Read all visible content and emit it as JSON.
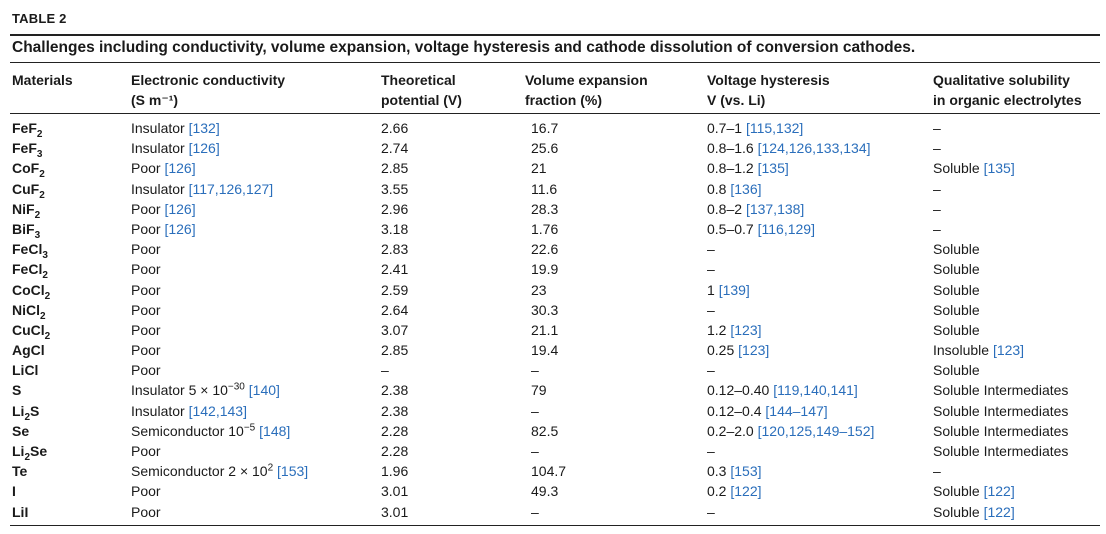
{
  "table": {
    "label": "TABLE 2",
    "caption": "Challenges including conductivity, volume expansion, voltage hysteresis and cathode dissolution of conversion cathodes.",
    "headers": {
      "materials": [
        "Materials"
      ],
      "conductivity": [
        "Electronic conductivity",
        "(S m⁻¹)"
      ],
      "potential": [
        "Theoretical",
        "potential (V)"
      ],
      "volume": [
        "Volume expansion",
        "fraction (%)"
      ],
      "hysteresis": [
        "Voltage hysteresis",
        "V (vs. Li)"
      ],
      "solubility": [
        "Qualitative solubility",
        "in organic electrolytes"
      ]
    },
    "rows": [
      {
        "mat": "FeF",
        "sub": "2",
        "cond": "Insulator",
        "cref": "[132]",
        "pot": "2.66",
        "vol": "16.7",
        "hys": "0.7–1",
        "href": "[115,132]",
        "sol": "–",
        "sref": ""
      },
      {
        "mat": "FeF",
        "sub": "3",
        "cond": "Insulator",
        "cref": "[126]",
        "pot": "2.74",
        "vol": "25.6",
        "hys": "0.8–1.6",
        "href": "[124,126,133,134]",
        "sol": "–",
        "sref": ""
      },
      {
        "mat": "CoF",
        "sub": "2",
        "cond": "Poor",
        "cref": "[126]",
        "pot": "2.85",
        "vol": "21",
        "hys": "0.8–1.2",
        "href": "[135]",
        "sol": "Soluble",
        "sref": "[135]"
      },
      {
        "mat": "CuF",
        "sub": "2",
        "cond": "Insulator",
        "cref": "[117,126,127]",
        "pot": "3.55",
        "vol": "11.6",
        "hys": "0.8",
        "href": "[136]",
        "sol": "–",
        "sref": ""
      },
      {
        "mat": "NiF",
        "sub": "2",
        "cond": "Poor",
        "cref": "[126]",
        "pot": "2.96",
        "vol": "28.3",
        "hys": "0.8–2",
        "href": "[137,138]",
        "sol": "–",
        "sref": ""
      },
      {
        "mat": "BiF",
        "sub": "3",
        "cond": "Poor",
        "cref": "[126]",
        "pot": "3.18",
        "vol": "1.76",
        "hys": "0.5–0.7",
        "href": "[116,129]",
        "sol": "–",
        "sref": ""
      },
      {
        "mat": "FeCl",
        "sub": "3",
        "cond": "Poor",
        "cref": "",
        "pot": "2.83",
        "vol": "22.6",
        "hys": "–",
        "href": "",
        "sol": "Soluble",
        "sref": ""
      },
      {
        "mat": "FeCl",
        "sub": "2",
        "cond": "Poor",
        "cref": "",
        "pot": "2.41",
        "vol": "19.9",
        "hys": "–",
        "href": "",
        "sol": "Soluble",
        "sref": ""
      },
      {
        "mat": "CoCl",
        "sub": "2",
        "cond": "Poor",
        "cref": "",
        "pot": "2.59",
        "vol": "23",
        "hys": "1",
        "href": "[139]",
        "sol": "Soluble",
        "sref": ""
      },
      {
        "mat": "NiCl",
        "sub": "2",
        "cond": "Poor",
        "cref": "",
        "pot": "2.64",
        "vol": "30.3",
        "hys": "–",
        "href": "",
        "sol": "Soluble",
        "sref": ""
      },
      {
        "mat": "CuCl",
        "sub": "2",
        "cond": "Poor",
        "cref": "",
        "pot": "3.07",
        "vol": "21.1",
        "hys": "1.2",
        "href": "[123]",
        "sol": "Soluble",
        "sref": ""
      },
      {
        "mat": "AgCl",
        "sub": "",
        "cond": "Poor",
        "cref": "",
        "pot": "2.85",
        "vol": "19.4",
        "hys": "0.25",
        "href": "[123]",
        "sol": "Insoluble",
        "sref": "[123]"
      },
      {
        "mat": "LiCl",
        "sub": "",
        "cond": "Poor",
        "cref": "",
        "pot": "–",
        "vol": "–",
        "hys": "–",
        "href": "",
        "sol": "Soluble",
        "sref": ""
      },
      {
        "mat": "S",
        "sub": "",
        "cond": "Insulator 5 × 10",
        "csup": "−30",
        "cref": "[140]",
        "pot": "2.38",
        "vol": "79",
        "hys": "0.12–0.40",
        "href": "[119,140,141]",
        "sol": "Soluble Intermediates",
        "sref": ""
      },
      {
        "mat": "Li",
        "sub": "2",
        "mat2": "S",
        "cond": "Insulator",
        "cref": "[142,143]",
        "pot": "2.38",
        "vol": "–",
        "hys": "0.12–0.4",
        "href": "[144–147]",
        "sol": "Soluble Intermediates",
        "sref": ""
      },
      {
        "mat": "Se",
        "sub": "",
        "cond": "Semiconductor 10",
        "csup": "−5",
        "cref": "[148]",
        "pot": "2.28",
        "vol": "82.5",
        "hys": "0.2–2.0",
        "href": "[120,125,149–152]",
        "sol": "Soluble Intermediates",
        "sref": ""
      },
      {
        "mat": "Li",
        "sub": "2",
        "mat2": "Se",
        "cond": "Poor",
        "cref": "",
        "pot": "2.28",
        "vol": "–",
        "hys": "–",
        "href": "",
        "sol": "Soluble Intermediates",
        "sref": ""
      },
      {
        "mat": "Te",
        "sub": "",
        "cond": "Semiconductor 2 × 10",
        "csup": "2",
        "cref": "[153]",
        "pot": "1.96",
        "vol": "104.7",
        "hys": "0.3",
        "href": "[153]",
        "sol": "–",
        "sref": ""
      },
      {
        "mat": "I",
        "sub": "",
        "cond": "Poor",
        "cref": "",
        "pot": "3.01",
        "vol": "49.3",
        "hys": "0.2",
        "href": "[122]",
        "sol": "Soluble",
        "sref": "[122]"
      },
      {
        "mat": "LiI",
        "sub": "",
        "cond": "Poor",
        "cref": "",
        "pot": "3.01",
        "vol": "–",
        "hys": "–",
        "href": "",
        "sol": "Soluble",
        "sref": "[122]"
      }
    ]
  },
  "colors": {
    "reference": "#2a6ebb",
    "text": "#1a1a1a",
    "rule": "#222222"
  }
}
